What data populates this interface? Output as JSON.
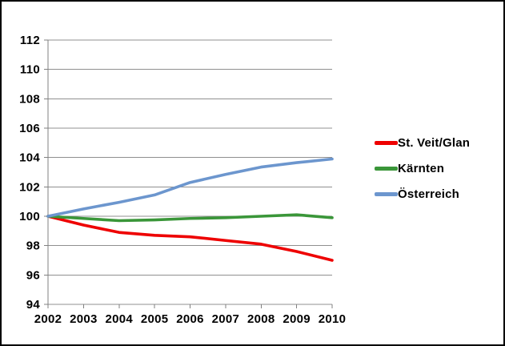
{
  "chart_data": {
    "type": "line",
    "title": "",
    "xlabel": "",
    "ylabel": "",
    "x": [
      "2002",
      "2003",
      "2004",
      "2005",
      "2006",
      "2007",
      "2008",
      "2009",
      "2010"
    ],
    "series": [
      {
        "name": "St. Veit/Glan",
        "color": "#ee0000",
        "values": [
          100.0,
          99.4,
          98.9,
          98.7,
          98.6,
          98.35,
          98.1,
          97.6,
          97.0
        ]
      },
      {
        "name": "Kärnten",
        "color": "#3a9639",
        "values": [
          100.0,
          99.85,
          99.7,
          99.75,
          99.85,
          99.9,
          100.0,
          100.1,
          99.9
        ]
      },
      {
        "name": "Österreich",
        "color": "#6c96ce",
        "values": [
          100.0,
          100.5,
          100.95,
          101.45,
          102.3,
          102.85,
          103.35,
          103.65,
          103.9
        ]
      }
    ],
    "ylim": [
      94,
      112
    ],
    "y_tick_step": 2,
    "grid": "horizontal",
    "legend_position": "right"
  },
  "styles": {
    "grid_color": "#909090",
    "axis_color": "#808080",
    "text_color": "#000000",
    "background": "#ffffff",
    "border_color": "#000000"
  }
}
